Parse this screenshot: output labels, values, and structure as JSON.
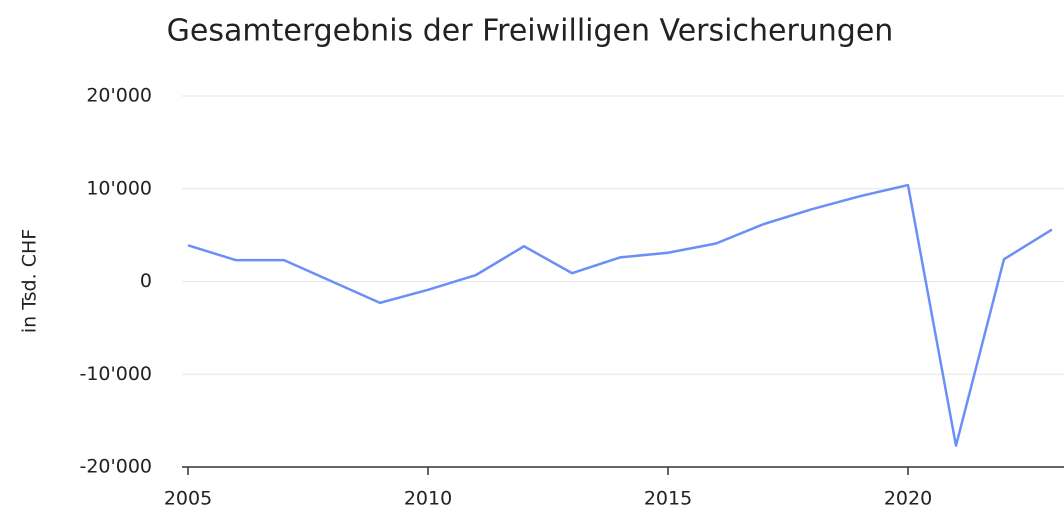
{
  "chart_data": {
    "type": "line",
    "title": "Gesamtergebnis der Freiwilligen Versicherungen",
    "y_label": "in Tsd. CHF",
    "x": [
      2005,
      2006,
      2007,
      2008,
      2009,
      2010,
      2011,
      2012,
      2013,
      2014,
      2015,
      2016,
      2017,
      2018,
      2019,
      2020,
      2021,
      2022,
      2023
    ],
    "series": [
      {
        "name": "Gesamtergebnis",
        "color": "#6b8ff7",
        "values": [
          3900,
          2300,
          2300,
          0,
          -2300,
          -900,
          700,
          3800,
          900,
          2600,
          3100,
          4100,
          6200,
          7800,
          9200,
          10400,
          -17700,
          2400,
          5600
        ]
      }
    ],
    "xlim": [
      2005,
      2023
    ],
    "xticks": [
      2005,
      2010,
      2015,
      2020
    ],
    "ylim": [
      -20000,
      20000
    ],
    "yticks": [
      {
        "value": -20000,
        "label": "-20'000"
      },
      {
        "value": -10000,
        "label": "-10'000"
      },
      0,
      {
        "value": 10000,
        "label": "10'000"
      },
      {
        "value": 20000,
        "label": "20'000"
      }
    ],
    "grid": true
  }
}
